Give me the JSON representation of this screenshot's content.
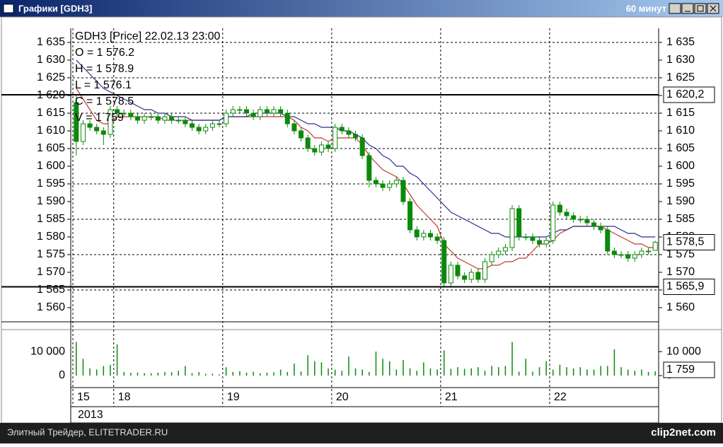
{
  "window": {
    "title": "Графики [GDH3]",
    "interval": "60 минут"
  },
  "footer": {
    "left": "Элитный Трейдер, ELITETRADER.RU",
    "right": "clip2net.com"
  },
  "chart_data": {
    "type": "candlestick",
    "legend": [
      "GDH3 [Price] 22.02.13 23:00",
      "O = 1 576.2",
      "H = 1 578.9",
      "L = 1 576.1",
      "C = 1 578.5",
      "V = 1 759"
    ],
    "categories": [
      "15",
      null,
      null,
      null,
      null,
      null,
      "18",
      null,
      null,
      null,
      null,
      null,
      null,
      null,
      null,
      null,
      null,
      null,
      null,
      null,
      null,
      null,
      "19",
      null,
      null,
      null,
      null,
      null,
      null,
      null,
      null,
      null,
      null,
      null,
      null,
      null,
      null,
      null,
      "20",
      null,
      null,
      null,
      null,
      null,
      null,
      null,
      null,
      null,
      null,
      null,
      null,
      null,
      null,
      null,
      "21",
      null,
      null,
      null,
      null,
      null,
      null,
      null,
      null,
      null,
      null,
      null,
      null,
      null,
      null,
      null,
      "22",
      null,
      null,
      null,
      null,
      null,
      null,
      null,
      null,
      null,
      null,
      null,
      null,
      null,
      null,
      null
    ],
    "year": "2013",
    "open": [
      1618,
      1607,
      1612,
      1611,
      1610,
      1609,
      1616,
      1615,
      1615,
      1614,
      1613,
      1614,
      1614,
      1613,
      1614,
      1613,
      1613,
      1612,
      1611,
      1610,
      1611,
      1612,
      1612,
      1615,
      1616,
      1616,
      1615,
      1614,
      1616,
      1615,
      1616,
      1615,
      1612,
      1610,
      1608,
      1605,
      1604,
      1606,
      1605,
      1611,
      1610,
      1609,
      1608,
      1603,
      1596,
      1595,
      1594,
      1595,
      1596,
      1590,
      1582,
      1580,
      1581,
      1580,
      1579,
      1567,
      1572,
      1569,
      1568,
      1570,
      1568,
      1573,
      1575,
      1576,
      1577,
      1588,
      1580,
      1580,
      1579,
      1578,
      1579,
      1589,
      1587,
      1586,
      1585,
      1585,
      1584,
      1583,
      1582,
      1576,
      1575,
      1575,
      1574,
      1575,
      1576,
      1576.2
    ],
    "high": [
      1620,
      1613,
      1613,
      1612,
      1611,
      1617,
      1617,
      1616,
      1616,
      1615,
      1615,
      1615,
      1615,
      1615,
      1615,
      1614,
      1614,
      1613,
      1612,
      1612,
      1613,
      1613,
      1616,
      1617,
      1617,
      1617,
      1616,
      1617,
      1617,
      1617,
      1617,
      1616,
      1613,
      1611,
      1609,
      1606,
      1607,
      1607,
      1612,
      1612,
      1611,
      1610,
      1609,
      1604,
      1597,
      1596,
      1596,
      1597,
      1597,
      1591,
      1583,
      1582,
      1582,
      1581,
      1580,
      1573,
      1573,
      1570,
      1571,
      1571,
      1574,
      1576,
      1577,
      1578,
      1589,
      1589,
      1581,
      1581,
      1580,
      1580,
      1590,
      1590,
      1588,
      1587,
      1586,
      1586,
      1585,
      1584,
      1583,
      1577,
      1576,
      1576,
      1576,
      1577,
      1577,
      1578.9
    ],
    "low": [
      1603,
      1606,
      1610,
      1609,
      1606,
      1608,
      1614,
      1614,
      1613,
      1612,
      1612,
      1613,
      1612,
      1612,
      1612,
      1612,
      1611,
      1610,
      1609,
      1609,
      1610,
      1611,
      1611,
      1614,
      1615,
      1614,
      1613,
      1613,
      1614,
      1614,
      1614,
      1611,
      1609,
      1607,
      1604,
      1603,
      1603,
      1604,
      1604,
      1609,
      1608,
      1607,
      1602,
      1594,
      1594,
      1593,
      1593,
      1594,
      1589,
      1581,
      1579,
      1579,
      1579,
      1578,
      1566,
      1566,
      1568,
      1567,
      1567,
      1567,
      1567,
      1572,
      1574,
      1575,
      1576,
      1579,
      1579,
      1578,
      1577,
      1577,
      1578,
      1586,
      1585,
      1584,
      1584,
      1583,
      1582,
      1581,
      1575,
      1574,
      1574,
      1573,
      1573,
      1574,
      1575,
      1576.1
    ],
    "close": [
      1607,
      1612,
      1611,
      1610,
      1609,
      1616,
      1615,
      1615,
      1614,
      1613,
      1614,
      1614,
      1613,
      1614,
      1613,
      1613,
      1612,
      1611,
      1610,
      1611,
      1612,
      1612,
      1615,
      1616,
      1616,
      1615,
      1614,
      1616,
      1615,
      1616,
      1615,
      1612,
      1610,
      1608,
      1605,
      1604,
      1606,
      1605,
      1611,
      1610,
      1609,
      1608,
      1603,
      1596,
      1595,
      1594,
      1595,
      1596,
      1590,
      1582,
      1580,
      1581,
      1580,
      1579,
      1567,
      1572,
      1569,
      1568,
      1570,
      1568,
      1573,
      1575,
      1576,
      1577,
      1588,
      1580,
      1580,
      1579,
      1578,
      1579,
      1589,
      1587,
      1586,
      1585,
      1585,
      1584,
      1583,
      1582,
      1576,
      1575,
      1575,
      1574,
      1575,
      1576,
      1576,
      1578.5
    ],
    "up_color": "#ffffff",
    "down_color": "#0a8a0a",
    "candle_edge": "#0a8a0a",
    "lines": [
      {
        "color": "#c0392b",
        "values": [
          1622,
          1619,
          1616,
          1613,
          1612,
          1612,
          1614,
          1614,
          1614,
          1614,
          1614,
          1614,
          1614,
          1613,
          1613,
          1613,
          1613,
          1613,
          1613,
          1613,
          1613,
          1613,
          1614,
          1614,
          1614,
          1614,
          1614,
          1614,
          1614,
          1614,
          1614,
          1614,
          1613,
          1611,
          1610,
          1608,
          1608,
          1607,
          1608,
          1608,
          1608,
          1608,
          1606,
          1603,
          1601,
          1599,
          1598,
          1597,
          1595,
          1592,
          1589,
          1587,
          1585,
          1583,
          1578,
          1576,
          1574,
          1573,
          1572,
          1571,
          1571,
          1572,
          1572,
          1573,
          1573,
          1574,
          1574,
          1576,
          1578,
          1578,
          1579,
          1581,
          1582,
          1583,
          1583,
          1583,
          1583,
          1583,
          1582,
          1581,
          1580,
          1579,
          1578,
          1578,
          1577,
          1577
        ]
      },
      {
        "color": "#2c2c8c",
        "values": [
          1630,
          1628,
          1626,
          1624,
          1622,
          1621,
          1620,
          1619,
          1618,
          1617,
          1616,
          1616,
          1615,
          1615,
          1614,
          1614,
          1614,
          1613,
          1613,
          1613,
          1613,
          1613,
          1614,
          1614,
          1614,
          1614,
          1615,
          1615,
          1615,
          1615,
          1615,
          1614,
          1614,
          1613,
          1612,
          1612,
          1611,
          1611,
          1611,
          1610,
          1610,
          1609,
          1608,
          1606,
          1605,
          1603,
          1602,
          1600,
          1600,
          1598,
          1597,
          1595,
          1593,
          1591,
          1589,
          1587,
          1586,
          1585,
          1584,
          1583,
          1582,
          1581,
          1581,
          1580,
          1580,
          1580,
          1580,
          1580,
          1580,
          1580,
          1581,
          1582,
          1582,
          1583,
          1583,
          1583,
          1583,
          1583,
          1583,
          1583,
          1582,
          1581,
          1581,
          1580,
          1580,
          1580
        ]
      }
    ],
    "ylim": [
      1556,
      1639
    ],
    "yticks": [
      {
        "value": 1635,
        "label": "1 635"
      },
      {
        "value": 1630,
        "label": "1 630"
      },
      {
        "value": 1625,
        "label": "1 625"
      },
      {
        "value": 1620,
        "label": "1 620"
      },
      {
        "value": 1615,
        "label": "1 615"
      },
      {
        "value": 1610,
        "label": "1 610"
      },
      {
        "value": 1605,
        "label": "1 605"
      },
      {
        "value": 1600,
        "label": "1 600"
      },
      {
        "value": 1595,
        "label": "1 595"
      },
      {
        "value": 1590,
        "label": "1 590"
      },
      {
        "value": 1585,
        "label": "1 585"
      },
      {
        "value": 1580,
        "label": "1 580"
      },
      {
        "value": 1575,
        "label": "1 575"
      },
      {
        "value": 1570,
        "label": "1 570"
      },
      {
        "value": 1565,
        "label": "1 565"
      },
      {
        "value": 1560,
        "label": "1 560"
      }
    ],
    "hlines": [
      {
        "value": 1620.2,
        "label": "1 620,2"
      },
      {
        "value": 1565.9,
        "label": "1 565,9"
      }
    ],
    "last_price_label": "1 578,5",
    "volume": {
      "color": "#0a8a0a",
      "values": [
        14000,
        7000,
        3000,
        2500,
        4000,
        4500,
        13000,
        1500,
        1200,
        1300,
        1000,
        1000,
        1200,
        1500,
        1400,
        2000,
        4000,
        1000,
        1500,
        700,
        800,
        500,
        3500,
        1500,
        1800,
        1200,
        1600,
        1000,
        1200,
        1400,
        2500,
        1500,
        5000,
        1700,
        8500,
        6000,
        5500,
        3000,
        2500,
        2000,
        8000,
        3000,
        2500,
        1500,
        10000,
        7000,
        6000,
        2500,
        6500,
        3000,
        2000,
        5500,
        3000,
        2500,
        10500,
        2800,
        3500,
        2800,
        3000,
        3500,
        2000,
        4000,
        3500,
        4000,
        14000,
        1600,
        7000,
        1600,
        3500,
        6000,
        2500,
        4500,
        3500,
        3000,
        3500,
        2500,
        2500,
        4000,
        4000,
        11000,
        3500,
        2500,
        2000,
        2500,
        1500,
        1759
      ],
      "ylim": [
        0,
        18000
      ],
      "yticks": [
        {
          "value": 10000,
          "label": "10 000"
        },
        0
      ],
      "last_label": "1 759"
    }
  }
}
